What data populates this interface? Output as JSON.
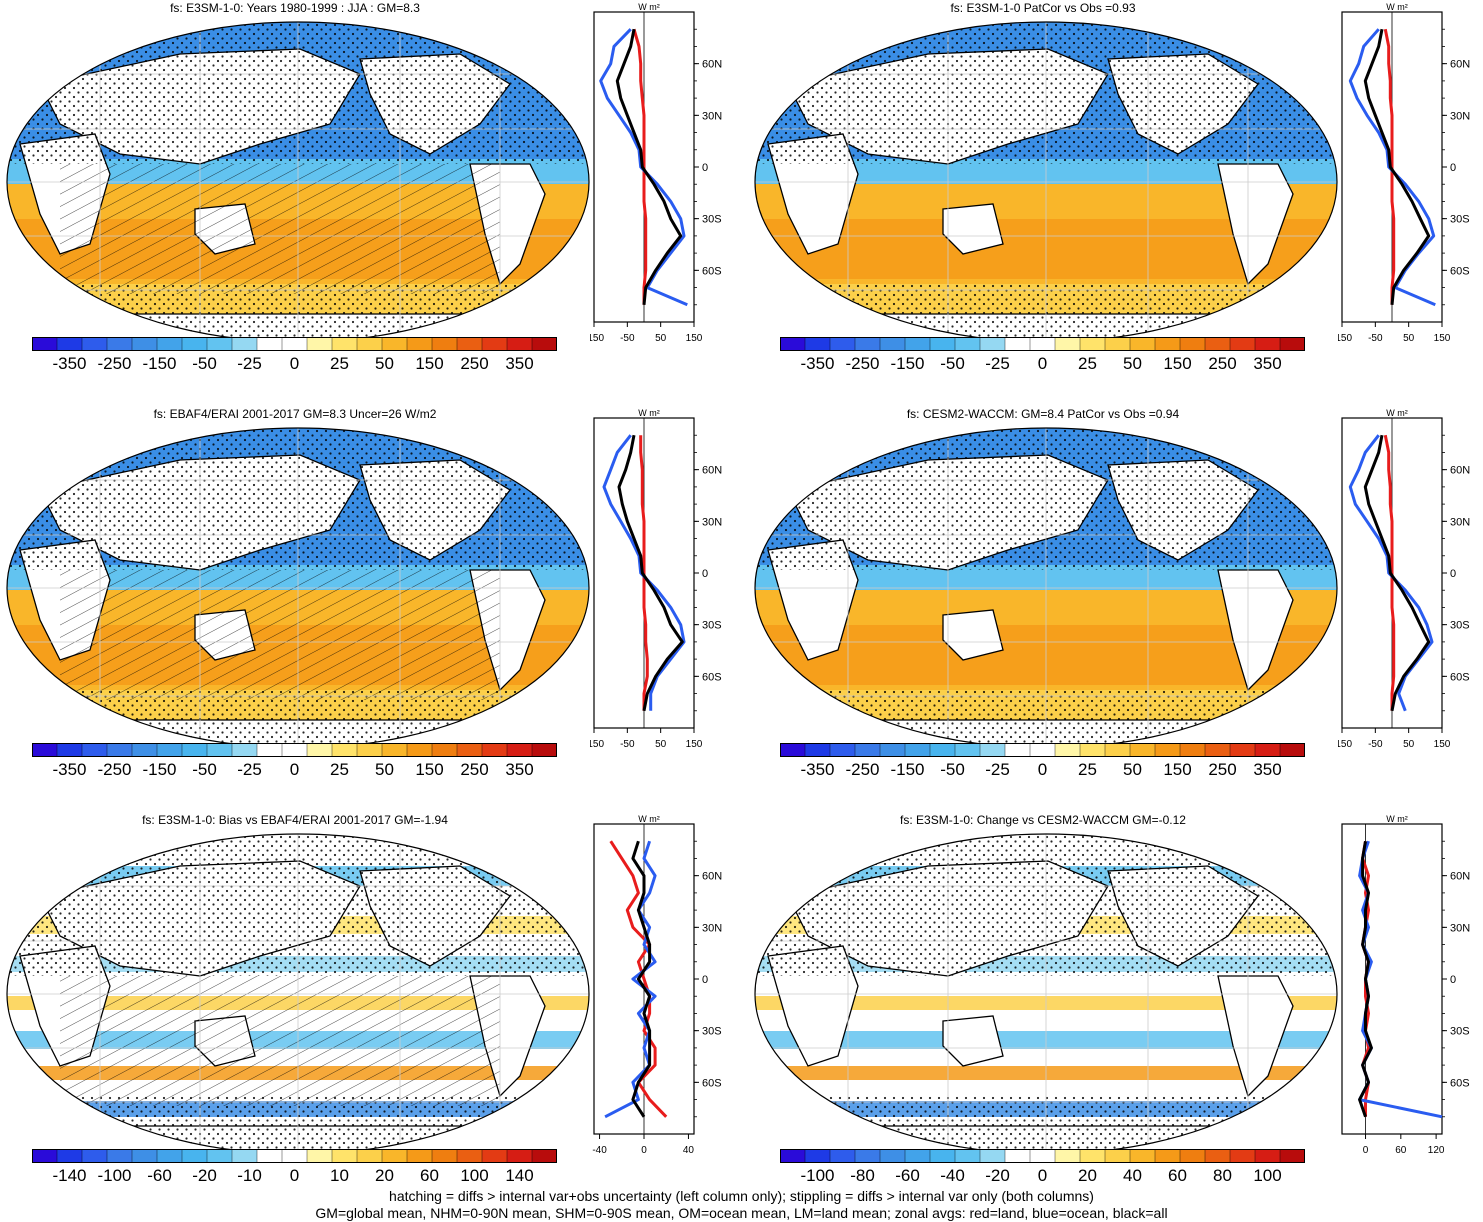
{
  "footer": {
    "line1": "hatching = diffs > internal var+obs uncertainty (left column only); stippling = diffs > internal var only (both columns)",
    "line2": "GM=global mean, NHM=0-90N mean, SHM=0-90S mean, OM=ocean mean, LM=land mean; zonal avgs: red=land, blue=ocean, black=all"
  },
  "colors": {
    "ocean_blue": "#2a5cf0",
    "land_red": "#e81c1c",
    "all_black": "#000000"
  },
  "colorbar_main": {
    "colors": [
      "#2a0bd9",
      "#1e3ae6",
      "#2e5cec",
      "#3a7ae8",
      "#3e8fe6",
      "#42a3ea",
      "#48b4ee",
      "#62c3f0",
      "#95d8f2",
      "#ffffff",
      "#ffffff",
      "#fff6a8",
      "#ffe36a",
      "#fcd04a",
      "#f9b62a",
      "#f59a18",
      "#ef7e10",
      "#ea5f12",
      "#e33b14",
      "#d61d14",
      "#b80c0c"
    ],
    "labels": [
      "-350",
      "-250",
      "-150",
      "-50",
      "-25",
      "0",
      "25",
      "50",
      "150",
      "250",
      "350"
    ]
  },
  "colorbar_bias": {
    "colors": [
      "#2a0bd9",
      "#1e3ae6",
      "#2e5cec",
      "#3a7ae8",
      "#3e8fe6",
      "#42a3ea",
      "#48b4ee",
      "#62c3f0",
      "#95d8f2",
      "#ffffff",
      "#ffffff",
      "#fff6a8",
      "#ffe36a",
      "#fcd04a",
      "#f9b62a",
      "#f59a18",
      "#ef7e10",
      "#ea5f12",
      "#e33b14",
      "#d61d14",
      "#b80c0c"
    ],
    "labels": [
      "-140",
      "-100",
      "-60",
      "-20",
      "-10",
      "0",
      "10",
      "20",
      "60",
      "100",
      "140"
    ]
  },
  "colorbar_change": {
    "colors": [
      "#2a0bd9",
      "#1e3ae6",
      "#2e5cec",
      "#3a7ae8",
      "#3e8fe6",
      "#42a3ea",
      "#48b4ee",
      "#62c3f0",
      "#95d8f2",
      "#ffffff",
      "#ffffff",
      "#fff6a8",
      "#ffe36a",
      "#fcd04a",
      "#f9b62a",
      "#f59a18",
      "#ef7e10",
      "#ea5f12",
      "#e33b14",
      "#d61d14",
      "#b80c0c"
    ],
    "labels": [
      "-100",
      "-80",
      "-60",
      "-40",
      "-20",
      "0",
      "20",
      "40",
      "60",
      "80",
      "100"
    ]
  },
  "chart_data": [
    {
      "type": "heatmap",
      "title": "fs: E3SM-1-0: Years 1980-1999 : JJA : GM=8.3",
      "colorbar": "colorbar_main",
      "hatching": true,
      "zonal": {
        "unit_label": "W m²",
        "xlim": [
          -150,
          150
        ],
        "xticks": [
          "-150",
          "-50",
          "50",
          "150"
        ],
        "yticks": [
          "60N",
          "30N",
          "0",
          "30S",
          "60S"
        ],
        "lat": [
          80,
          70,
          60,
          50,
          40,
          30,
          20,
          10,
          0,
          -10,
          -20,
          -30,
          -40,
          -50,
          -60,
          -70,
          -80
        ],
        "series": [
          {
            "name": "land",
            "color": "#e81c1c",
            "values": [
              -30,
              -15,
              -10,
              -10,
              -5,
              0,
              0,
              0,
              0,
              0,
              0,
              5,
              5,
              5,
              5,
              0,
              0
            ]
          },
          {
            "name": "ocean",
            "color": "#2a5cf0",
            "values": [
              -40,
              -90,
              -100,
              -130,
              -110,
              -75,
              -40,
              -15,
              -10,
              40,
              80,
              110,
              120,
              80,
              40,
              10,
              130
            ]
          },
          {
            "name": "all",
            "color": "#000000",
            "values": [
              -30,
              -40,
              -60,
              -80,
              -70,
              -50,
              -30,
              -10,
              -5,
              30,
              60,
              80,
              110,
              70,
              35,
              5,
              0
            ]
          }
        ]
      }
    },
    {
      "type": "heatmap",
      "title": "fs: E3SM-1-0 PatCor vs Obs =0.93",
      "colorbar": "colorbar_main",
      "hatching": false,
      "zonal": {
        "unit_label": "W m²",
        "xlim": [
          -150,
          150
        ],
        "xticks": [
          "-150",
          "-50",
          "50",
          "150"
        ],
        "yticks": [
          "60N",
          "30N",
          "0",
          "30S",
          "60S"
        ],
        "lat": [
          80,
          70,
          60,
          50,
          40,
          30,
          20,
          10,
          0,
          -10,
          -20,
          -30,
          -40,
          -50,
          -60,
          -70,
          -80
        ],
        "series": [
          {
            "name": "land",
            "color": "#e81c1c",
            "values": [
              -20,
              -10,
              -10,
              -5,
              -5,
              0,
              0,
              0,
              0,
              0,
              0,
              5,
              5,
              5,
              5,
              0,
              0
            ]
          },
          {
            "name": "ocean",
            "color": "#2a5cf0",
            "values": [
              -40,
              -85,
              -100,
              -125,
              -105,
              -75,
              -40,
              -15,
              -10,
              40,
              80,
              110,
              125,
              80,
              40,
              10,
              130
            ]
          },
          {
            "name": "all",
            "color": "#000000",
            "values": [
              -30,
              -40,
              -60,
              -80,
              -70,
              -50,
              -30,
              -10,
              -5,
              30,
              60,
              85,
              110,
              75,
              35,
              5,
              0
            ]
          }
        ]
      }
    },
    {
      "type": "heatmap",
      "title": "fs: EBAF4/ERAI 2001-2017 GM=8.3 Uncer=26 W/m2",
      "colorbar": "colorbar_main",
      "hatching": true,
      "zonal": {
        "unit_label": "W m²",
        "xlim": [
          -150,
          150
        ],
        "xticks": [
          "-150",
          "-50",
          "50",
          "150"
        ],
        "yticks": [
          "60N",
          "30N",
          "0",
          "30S",
          "60S"
        ],
        "lat": [
          80,
          70,
          60,
          50,
          40,
          30,
          20,
          10,
          0,
          -10,
          -20,
          -30,
          -40,
          -50,
          -60,
          -70,
          -80
        ],
        "series": [
          {
            "name": "land",
            "color": "#e81c1c",
            "values": [
              -10,
              -10,
              -5,
              -5,
              -5,
              0,
              0,
              0,
              0,
              0,
              0,
              5,
              5,
              10,
              10,
              0,
              0
            ]
          },
          {
            "name": "ocean",
            "color": "#2a5cf0",
            "values": [
              -40,
              -80,
              -100,
              -120,
              -100,
              -70,
              -40,
              -15,
              -10,
              40,
              80,
              110,
              120,
              80,
              40,
              20,
              20
            ]
          },
          {
            "name": "all",
            "color": "#000000",
            "values": [
              -30,
              -40,
              -55,
              -75,
              -65,
              -50,
              -30,
              -10,
              -5,
              30,
              60,
              80,
              115,
              70,
              35,
              10,
              0
            ]
          }
        ]
      }
    },
    {
      "type": "heatmap",
      "title": "fs: CESM2-WACCM: GM=8.4 PatCor vs Obs =0.94",
      "colorbar": "colorbar_main",
      "hatching": false,
      "zonal": {
        "unit_label": "W m²",
        "xlim": [
          -150,
          150
        ],
        "xticks": [
          "-150",
          "-50",
          "50",
          "150"
        ],
        "yticks": [
          "60N",
          "30N",
          "0",
          "30S",
          "60S"
        ],
        "lat": [
          80,
          70,
          60,
          50,
          40,
          30,
          20,
          10,
          0,
          -10,
          -20,
          -30,
          -40,
          -50,
          -60,
          -70,
          -80
        ],
        "series": [
          {
            "name": "land",
            "color": "#e81c1c",
            "values": [
              -20,
              -10,
              -10,
              -5,
              -5,
              0,
              0,
              0,
              0,
              0,
              0,
              5,
              5,
              5,
              5,
              0,
              0
            ]
          },
          {
            "name": "ocean",
            "color": "#2a5cf0",
            "values": [
              -40,
              -80,
              -100,
              -125,
              -110,
              -75,
              -40,
              -15,
              -10,
              40,
              80,
              105,
              120,
              80,
              40,
              20,
              40
            ]
          },
          {
            "name": "all",
            "color": "#000000",
            "values": [
              -30,
              -40,
              -60,
              -80,
              -70,
              -50,
              -30,
              -10,
              -5,
              30,
              60,
              85,
              110,
              75,
              35,
              10,
              0
            ]
          }
        ]
      }
    },
    {
      "type": "heatmap",
      "title": "fs: E3SM-1-0: Bias vs EBAF4/ERAI 2001-2017 GM=-1.94",
      "colorbar": "colorbar_bias",
      "hatching": true,
      "zonal": {
        "unit_label": "W m²",
        "xlim": [
          -45,
          45
        ],
        "xticks": [
          "-40",
          "0",
          "40"
        ],
        "yticks": [
          "60N",
          "30N",
          "0",
          "30S",
          "60S"
        ],
        "lat": [
          80,
          70,
          60,
          50,
          40,
          30,
          20,
          10,
          0,
          -10,
          -20,
          -30,
          -40,
          -50,
          -60,
          -70,
          -80
        ],
        "series": [
          {
            "name": "land",
            "color": "#e81c1c",
            "values": [
              -30,
              -20,
              -10,
              -5,
              -15,
              -10,
              5,
              -5,
              0,
              5,
              5,
              0,
              10,
              10,
              -5,
              5,
              20
            ]
          },
          {
            "name": "ocean",
            "color": "#2a5cf0",
            "values": [
              5,
              0,
              10,
              5,
              -5,
              5,
              0,
              10,
              -10,
              10,
              -5,
              5,
              0,
              5,
              -10,
              -5,
              -35
            ]
          },
          {
            "name": "all",
            "color": "#000000",
            "values": [
              -5,
              -10,
              0,
              0,
              -5,
              0,
              5,
              5,
              -5,
              5,
              0,
              5,
              5,
              5,
              -5,
              -10,
              0
            ]
          }
        ]
      }
    },
    {
      "type": "heatmap",
      "title": "fs: E3SM-1-0: Change vs CESM2-WACCM GM=-0.12",
      "colorbar": "colorbar_change",
      "hatching": false,
      "zonal": {
        "unit_label": "W m²",
        "xlim": [
          -40,
          130
        ],
        "xticks": [
          "0",
          "60",
          "120"
        ],
        "yticks": [
          "60N",
          "30N",
          "0",
          "30S",
          "60S"
        ],
        "lat": [
          80,
          70,
          60,
          50,
          40,
          30,
          20,
          10,
          0,
          -10,
          -20,
          -30,
          -40,
          -50,
          -60,
          -70,
          -80
        ],
        "series": [
          {
            "name": "land",
            "color": "#e81c1c",
            "values": [
              0,
              -5,
              5,
              0,
              5,
              0,
              -5,
              5,
              0,
              0,
              5,
              0,
              5,
              -5,
              5,
              0,
              0
            ]
          },
          {
            "name": "ocean",
            "color": "#2a5cf0",
            "values": [
              5,
              -5,
              -10,
              5,
              -5,
              5,
              -5,
              10,
              0,
              5,
              0,
              -5,
              10,
              -5,
              5,
              -10,
              130
            ]
          },
          {
            "name": "all",
            "color": "#000000",
            "values": [
              0,
              -5,
              -5,
              5,
              0,
              0,
              -5,
              5,
              0,
              5,
              0,
              0,
              10,
              -5,
              5,
              -10,
              0
            ]
          }
        ]
      }
    }
  ]
}
